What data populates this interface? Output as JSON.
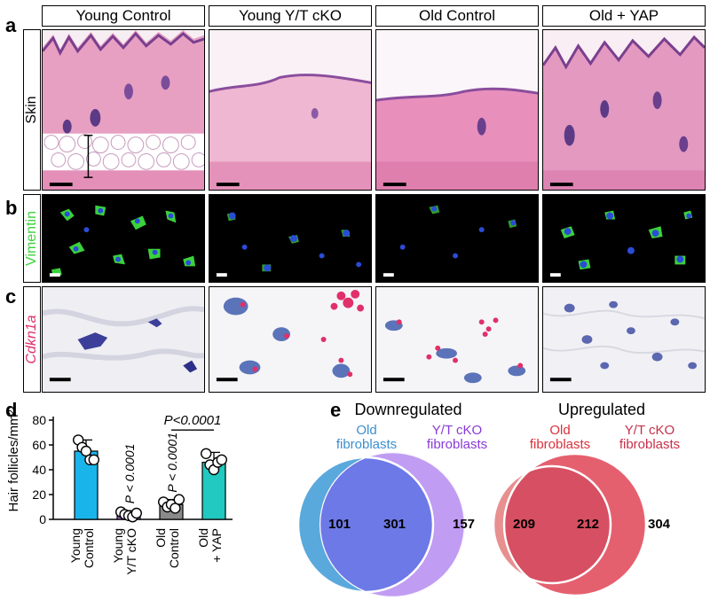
{
  "panels": {
    "a": "a",
    "b": "b",
    "c": "c",
    "d": "d",
    "e": "e"
  },
  "columns": [
    "Young Control",
    "Young Y/T cKO",
    "Old Control",
    "Old + YAP"
  ],
  "rows": {
    "skin": "Skin",
    "vimentin": "Vimentin",
    "cdkn1a": "Cdkn1a"
  },
  "colors": {
    "he_pink": "#e9a7c6",
    "he_dark": "#7a3f8e",
    "vimentin_green": "#3bd23b",
    "dapi_blue": "#2b4cd6",
    "ish_red": "#e0306a",
    "bar_blue": "#19b5ea",
    "bar_purple": "#9b60d0",
    "bar_grey": "#8a8a8a",
    "bar_teal": "#22c9c0",
    "venn_down_left": "#5aa9dc",
    "venn_down_right": "#c09cf2",
    "venn_down_overlap": "#6d79e6",
    "venn_up_left": "#e88f90",
    "venn_up_right": "#e5606f",
    "venn_up_overlap": "#d74f62"
  },
  "chart_data": [
    {
      "type": "bar",
      "ylabel": "Hair follicles/mm²",
      "ylim": [
        0,
        80
      ],
      "yticks": [
        "0",
        "20",
        "40",
        "60",
        "80"
      ],
      "categories": [
        "Young Control",
        "Young Y/T cKO",
        "Old Control",
        "Old + YAP"
      ],
      "category_lines": [
        [
          "Young",
          "Control"
        ],
        [
          "Young",
          "Y/T cKO"
        ],
        [
          "Old",
          "Control"
        ],
        [
          "Old",
          "+ YAP"
        ]
      ],
      "values": [
        55,
        4,
        12,
        46
      ],
      "errors": [
        9,
        3,
        4,
        8
      ],
      "points": [
        [
          64,
          58,
          55,
          48,
          48
        ],
        [
          6,
          4,
          3,
          2,
          5
        ],
        [
          14,
          10,
          12,
          9,
          16
        ],
        [
          53,
          44,
          40,
          46,
          48
        ]
      ],
      "annotations": {
        "young_ytcko": "P < 0.0001",
        "old_control": "P < 0.0001",
        "bracket": "P<0.0001"
      }
    },
    {
      "type": "venn",
      "title": "Downregulated",
      "sets": [
        "Old fibroblasts",
        "Y/T cKO fibroblasts"
      ],
      "set_lines": [
        [
          "Old",
          "fibroblasts"
        ],
        [
          "Y/T cKO",
          "fibroblasts"
        ]
      ],
      "counts": {
        "left_only": 101,
        "both": 301,
        "right_only": 157
      }
    },
    {
      "type": "venn",
      "title": "Upregulated",
      "sets": [
        "Old fibroblasts",
        "Y/T cKO fibroblasts"
      ],
      "set_lines": [
        [
          "Old",
          "fibroblasts"
        ],
        [
          "Y/T cKO",
          "fibroblasts"
        ]
      ],
      "counts": {
        "left_only": 209,
        "both": 212,
        "right_only": 304
      }
    }
  ]
}
